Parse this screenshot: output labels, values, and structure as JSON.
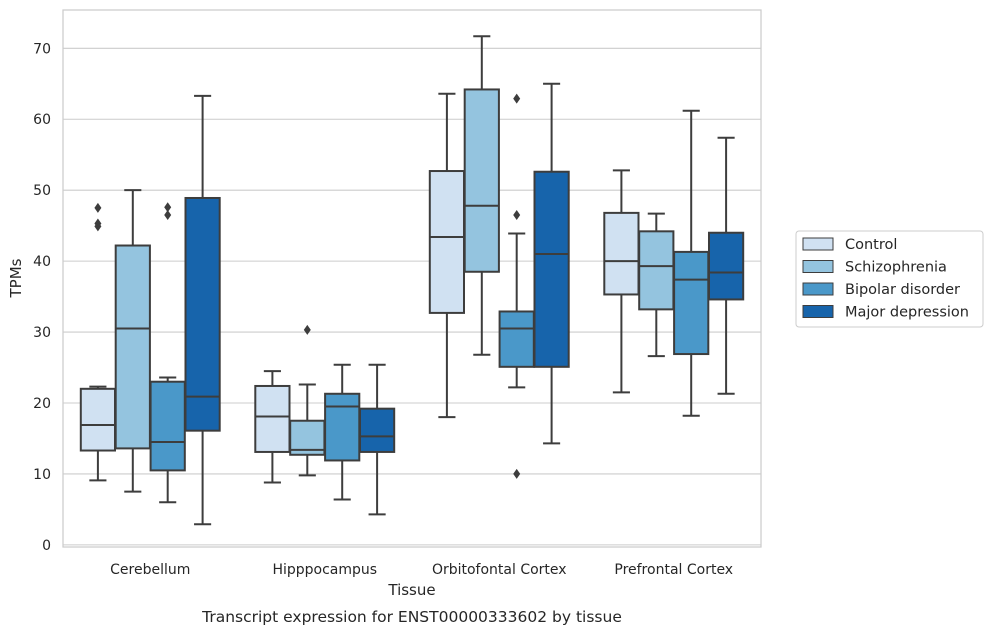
{
  "chart_data": {
    "type": "box",
    "caption": "Transcript expression for ENST00000333602 by tissue",
    "xlabel": "Tissue",
    "ylabel": "TPMs",
    "ylim": [
      -0.3,
      75.4
    ],
    "yticks": [
      0,
      10,
      20,
      30,
      40,
      50,
      60,
      70
    ],
    "grid": "horizontal",
    "legend_position": "right",
    "categories": [
      "Cerebellum",
      "Hipppocampus",
      "Orbitofontal Cortex",
      "Prefrontal Cortex"
    ],
    "series": [
      {
        "name": "Control",
        "color": "#d0e1f2",
        "boxes": [
          {
            "whislo": 9.1,
            "q1": 13.3,
            "med": 16.9,
            "q3": 22.0,
            "whishi": 22.3,
            "fliers": [
              47.5,
              45.3,
              44.9
            ]
          },
          {
            "whislo": 8.8,
            "q1": 13.1,
            "med": 18.1,
            "q3": 22.4,
            "whishi": 24.5,
            "fliers": []
          },
          {
            "whislo": 18.0,
            "q1": 32.7,
            "med": 43.4,
            "q3": 52.7,
            "whishi": 63.6,
            "fliers": []
          },
          {
            "whislo": 21.5,
            "q1": 35.3,
            "med": 40.0,
            "q3": 46.8,
            "whishi": 52.8,
            "fliers": []
          }
        ]
      },
      {
        "name": "Schizophrenia",
        "color": "#94c4df",
        "boxes": [
          {
            "whislo": 7.5,
            "q1": 13.6,
            "med": 30.5,
            "q3": 42.2,
            "whishi": 50.0,
            "fliers": []
          },
          {
            "whislo": 9.8,
            "q1": 12.7,
            "med": 13.4,
            "q3": 17.5,
            "whishi": 22.6,
            "fliers": [
              30.3
            ]
          },
          {
            "whislo": 26.8,
            "q1": 38.5,
            "med": 47.8,
            "q3": 64.2,
            "whishi": 71.7,
            "fliers": []
          },
          {
            "whislo": 26.6,
            "q1": 33.2,
            "med": 39.3,
            "q3": 44.2,
            "whishi": 46.7,
            "fliers": []
          }
        ]
      },
      {
        "name": "Bipolar disorder",
        "color": "#4a98c9",
        "boxes": [
          {
            "whislo": 6.0,
            "q1": 10.5,
            "med": 14.5,
            "q3": 23.0,
            "whishi": 23.6,
            "fliers": [
              47.6,
              46.5
            ]
          },
          {
            "whislo": 6.4,
            "q1": 11.9,
            "med": 19.5,
            "q3": 21.3,
            "whishi": 25.4,
            "fliers": []
          },
          {
            "whislo": 22.2,
            "q1": 25.1,
            "med": 30.5,
            "q3": 32.9,
            "whishi": 43.9,
            "fliers": [
              62.9,
              46.5,
              10.0
            ]
          },
          {
            "whislo": 18.2,
            "q1": 26.9,
            "med": 37.4,
            "q3": 41.3,
            "whishi": 61.2,
            "fliers": []
          }
        ]
      },
      {
        "name": "Major depression",
        "color": "#1764ab",
        "boxes": [
          {
            "whislo": 2.9,
            "q1": 16.1,
            "med": 20.9,
            "q3": 48.9,
            "whishi": 63.3,
            "fliers": []
          },
          {
            "whislo": 4.3,
            "q1": 13.1,
            "med": 15.3,
            "q3": 19.2,
            "whishi": 25.4,
            "fliers": []
          },
          {
            "whislo": 14.3,
            "q1": 25.1,
            "med": 41.0,
            "q3": 52.6,
            "whishi": 65.0,
            "fliers": []
          },
          {
            "whislo": 21.3,
            "q1": 34.6,
            "med": 38.4,
            "q3": 44.0,
            "whishi": 57.4,
            "fliers": []
          }
        ]
      }
    ]
  }
}
